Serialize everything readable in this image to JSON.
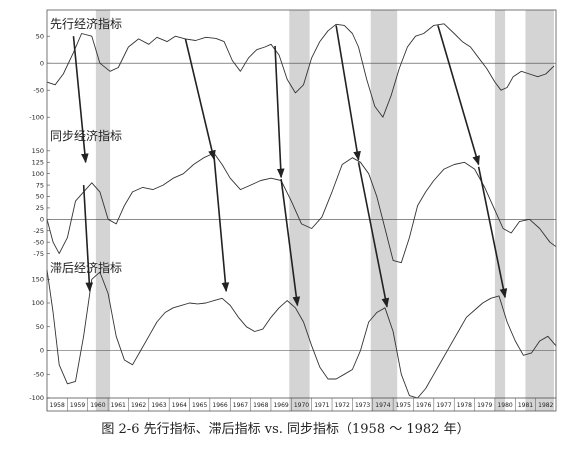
{
  "caption": "图 2-6 先行指标、滞后指标 vs. 同步指标（1958 ～ 1982 年）",
  "colors": {
    "line": "#333333",
    "shade": "#d4d4d4",
    "arrow": "#222222",
    "frame": "#555555"
  },
  "chart_data": {
    "type": "line",
    "x_range": [
      1958,
      1983
    ],
    "grid": false,
    "recessions": [
      [
        1960.4,
        1961.1
      ],
      [
        1969.9,
        1970.9
      ],
      [
        1973.9,
        1975.2
      ],
      [
        1980.0,
        1980.5
      ],
      [
        1981.5,
        1982.9
      ]
    ],
    "years": [
      "1958",
      "1959",
      "1960",
      "1961",
      "1962",
      "1963",
      "1964",
      "1965",
      "1966",
      "1967",
      "1968",
      "1969",
      "1970",
      "1971",
      "1972",
      "1973",
      "1974",
      "1975",
      "1976",
      "1977",
      "1978",
      "1979",
      "1980",
      "1981",
      "1982"
    ],
    "panels": [
      {
        "title": "先行经济指标",
        "ylim": [
          -120,
          80
        ],
        "ticks": [
          50,
          0,
          -50,
          -100
        ],
        "series": {
          "x": [
            1958,
            1958.4,
            1958.8,
            1959.3,
            1959.7,
            1960.2,
            1960.6,
            1961.1,
            1961.5,
            1962,
            1962.5,
            1963,
            1963.4,
            1963.9,
            1964.3,
            1964.8,
            1965.3,
            1965.8,
            1966.3,
            1966.7,
            1967.1,
            1967.5,
            1967.9,
            1968.3,
            1968.7,
            1969,
            1969.4,
            1969.8,
            1970.2,
            1970.6,
            1971,
            1971.4,
            1971.8,
            1972.2,
            1972.6,
            1973,
            1973.3,
            1973.7,
            1974.1,
            1974.5,
            1974.9,
            1975.3,
            1975.7,
            1976.1,
            1976.5,
            1977,
            1977.5,
            1978,
            1978.4,
            1978.8,
            1979.2,
            1979.6,
            1980,
            1980.3,
            1980.6,
            1980.9,
            1981.3,
            1981.7,
            1982.1,
            1982.5,
            1982.9
          ],
          "y": [
            -35,
            -40,
            -20,
            20,
            55,
            50,
            0,
            -15,
            -8,
            30,
            45,
            35,
            48,
            40,
            50,
            45,
            42,
            48,
            46,
            40,
            5,
            -15,
            10,
            25,
            30,
            35,
            15,
            -30,
            -55,
            -40,
            10,
            40,
            60,
            72,
            70,
            55,
            30,
            -30,
            -80,
            -100,
            -60,
            -10,
            30,
            50,
            55,
            70,
            73,
            55,
            40,
            30,
            10,
            -10,
            -35,
            -50,
            -45,
            -25,
            -15,
            -20,
            -25,
            -20,
            -5
          ]
        }
      },
      {
        "title": "同步经济指标",
        "ylim": [
          -100,
          200
        ],
        "ticks": [
          150,
          125,
          100,
          75,
          50,
          25,
          0,
          -25,
          -50,
          -75
        ],
        "series": {
          "x": [
            1958,
            1958.3,
            1958.6,
            1959,
            1959.4,
            1959.8,
            1960.2,
            1960.6,
            1961,
            1961.4,
            1961.8,
            1962.2,
            1962.7,
            1963.2,
            1963.7,
            1964.2,
            1964.7,
            1965.2,
            1965.7,
            1966.2,
            1966.6,
            1967,
            1967.5,
            1968,
            1968.5,
            1969,
            1969.5,
            1970,
            1970.5,
            1971,
            1971.5,
            1972,
            1972.5,
            1973,
            1973.4,
            1973.8,
            1974.2,
            1974.6,
            1975,
            1975.4,
            1975.8,
            1976.2,
            1976.6,
            1977,
            1977.5,
            1978,
            1978.5,
            1979,
            1979.5,
            1980,
            1980.4,
            1980.8,
            1981.2,
            1981.7,
            1982.2,
            1982.7,
            1983
          ],
          "y": [
            0,
            -50,
            -75,
            -40,
            40,
            60,
            80,
            60,
            0,
            -10,
            30,
            60,
            70,
            65,
            75,
            90,
            100,
            120,
            135,
            145,
            120,
            90,
            65,
            75,
            85,
            90,
            85,
            40,
            -10,
            -20,
            5,
            60,
            120,
            135,
            125,
            100,
            50,
            -20,
            -90,
            -95,
            -40,
            30,
            60,
            85,
            110,
            120,
            125,
            110,
            70,
            20,
            -20,
            -30,
            -5,
            0,
            -20,
            -50,
            -60
          ]
        }
      },
      {
        "title": "滞后经济指标",
        "ylim": [
          -100,
          180
        ],
        "ticks": [
          150,
          100,
          50,
          0,
          -50,
          -100
        ],
        "series": {
          "x": [
            1958,
            1958.3,
            1958.6,
            1959,
            1959.4,
            1959.8,
            1960.2,
            1960.6,
            1961,
            1961.4,
            1961.8,
            1962.2,
            1962.6,
            1963,
            1963.4,
            1963.8,
            1964.2,
            1964.6,
            1965,
            1965.4,
            1965.8,
            1966.2,
            1966.6,
            1967,
            1967.4,
            1967.8,
            1968.2,
            1968.6,
            1969,
            1969.4,
            1969.8,
            1970.2,
            1970.6,
            1971,
            1971.4,
            1971.8,
            1972.2,
            1972.6,
            1973,
            1973.4,
            1973.8,
            1974.2,
            1974.6,
            1975,
            1975.4,
            1975.8,
            1976.2,
            1976.6,
            1977,
            1977.4,
            1977.8,
            1978.2,
            1978.6,
            1979,
            1979.4,
            1979.8,
            1980.2,
            1980.6,
            1981,
            1981.4,
            1981.8,
            1982.2,
            1982.6,
            1983
          ],
          "y": [
            170,
            80,
            -30,
            -70,
            -65,
            30,
            150,
            165,
            120,
            30,
            -20,
            -30,
            0,
            30,
            60,
            80,
            90,
            95,
            100,
            98,
            100,
            105,
            110,
            95,
            70,
            50,
            40,
            45,
            70,
            90,
            105,
            90,
            60,
            10,
            -35,
            -60,
            -60,
            -50,
            -40,
            0,
            60,
            80,
            90,
            40,
            -50,
            -95,
            -100,
            -80,
            -50,
            -20,
            10,
            40,
            70,
            85,
            100,
            110,
            115,
            60,
            20,
            -10,
            -5,
            20,
            30,
            10
          ]
        }
      }
    ],
    "arrows": [
      [
        [
          1959.3,
          0,
          50
        ],
        [
          1959.9,
          1,
          125
        ]
      ],
      [
        [
          1959.8,
          1,
          75
        ],
        [
          1960.1,
          2,
          125
        ]
      ],
      [
        [
          1964.8,
          0,
          45
        ],
        [
          1966.2,
          1,
          132
        ]
      ],
      [
        [
          1966.2,
          1,
          140
        ],
        [
          1966.8,
          2,
          125
        ]
      ],
      [
        [
          1969.2,
          0,
          32
        ],
        [
          1969.5,
          1,
          92
        ]
      ],
      [
        [
          1969.5,
          1,
          88
        ],
        [
          1970.3,
          2,
          95
        ]
      ],
      [
        [
          1972.2,
          0,
          70
        ],
        [
          1973.3,
          1,
          130
        ]
      ],
      [
        [
          1973.3,
          1,
          125
        ],
        [
          1974.7,
          2,
          92
        ]
      ],
      [
        [
          1977.2,
          0,
          70
        ],
        [
          1979.2,
          1,
          120
        ]
      ],
      [
        [
          1979.2,
          1,
          115
        ],
        [
          1980.5,
          2,
          112
        ]
      ]
    ]
  }
}
